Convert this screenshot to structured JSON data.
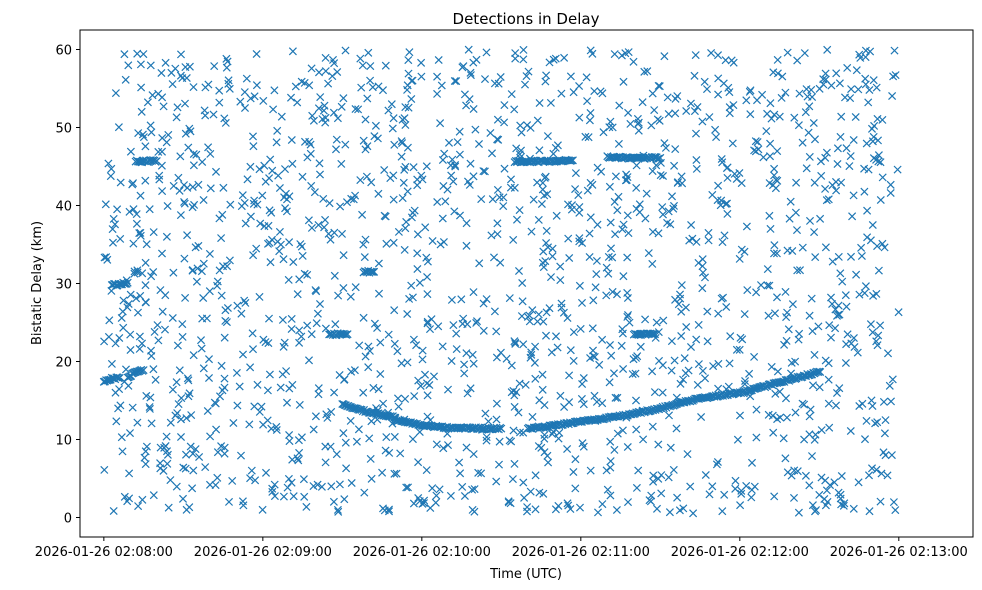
{
  "chart_data": {
    "type": "scatter",
    "title": "Detections in Delay",
    "xlabel": "Time (UTC)",
    "ylabel": "Bistatic Delay (km)",
    "x_ticks": [
      "2026-01-26 02:08:00",
      "2026-01-26 02:09:00",
      "2026-01-26 02:10:00",
      "2026-01-26 02:11:00",
      "2026-01-26 02:12:00",
      "2026-01-26 02:13:00"
    ],
    "y_ticks": [
      "0",
      "10",
      "20",
      "30",
      "40",
      "50",
      "60"
    ],
    "xlim": [
      "2026-01-26 02:07:51",
      "2026-01-26 02:13:28"
    ],
    "ylim": [
      -2.5,
      62.5
    ],
    "marker": "x",
    "color": "#1f77b4",
    "grid": false,
    "noise_detections": {
      "time_start": "2026-01-26 02:08:00",
      "time_end": "2026-01-26 02:13:00",
      "delay_min": 0.5,
      "delay_max": 60,
      "count": 1700
    },
    "tracks": [
      {
        "points": [
          [
            "2026-01-26 02:08:00",
            17.5
          ],
          [
            "2026-01-26 02:08:03",
            17.8
          ],
          [
            "2026-01-26 02:08:06",
            17.9
          ]
        ]
      },
      {
        "points": [
          [
            "2026-01-26 02:08:03",
            29.8
          ],
          [
            "2026-01-26 02:08:06",
            29.9
          ],
          [
            "2026-01-26 02:08:09",
            30.1
          ]
        ]
      },
      {
        "points": [
          [
            "2026-01-26 02:08:09",
            18.0
          ],
          [
            "2026-01-26 02:08:12",
            18.6
          ],
          [
            "2026-01-26 02:08:15",
            18.9
          ]
        ]
      },
      {
        "points": [
          [
            "2026-01-26 02:08:12",
            45.7
          ],
          [
            "2026-01-26 02:08:15",
            45.7
          ],
          [
            "2026-01-26 02:08:20",
            45.7
          ]
        ]
      },
      {
        "points": [
          [
            "2026-01-26 02:09:25",
            23.5
          ],
          [
            "2026-01-26 02:09:32",
            23.5
          ]
        ]
      },
      {
        "points": [
          [
            "2026-01-26 02:09:30",
            14.5
          ],
          [
            "2026-01-26 02:09:40",
            13.5
          ],
          [
            "2026-01-26 02:09:50",
            12.8
          ]
        ]
      },
      {
        "points": [
          [
            "2026-01-26 02:09:38",
            31.5
          ],
          [
            "2026-01-26 02:09:42",
            31.5
          ]
        ]
      },
      {
        "points": [
          [
            "2026-01-26 02:09:50",
            12.5
          ],
          [
            "2026-01-26 02:10:00",
            11.8
          ],
          [
            "2026-01-26 02:10:10",
            11.5
          ],
          [
            "2026-01-26 02:10:30",
            11.4
          ]
        ]
      },
      {
        "points": [
          [
            "2026-01-26 02:10:35",
            45.6
          ],
          [
            "2026-01-26 02:10:50",
            45.7
          ],
          [
            "2026-01-26 02:10:57",
            45.8
          ]
        ]
      },
      {
        "points": [
          [
            "2026-01-26 02:10:40",
            11.4
          ],
          [
            "2026-01-26 02:10:50",
            11.8
          ],
          [
            "2026-01-26 02:11:00",
            12.3
          ],
          [
            "2026-01-26 02:11:15",
            13.0
          ],
          [
            "2026-01-26 02:11:30",
            14.0
          ],
          [
            "2026-01-26 02:11:45",
            15.3
          ],
          [
            "2026-01-26 02:12:00",
            16.0
          ],
          [
            "2026-01-26 02:12:15",
            17.3
          ],
          [
            "2026-01-26 02:12:30",
            18.7
          ]
        ]
      },
      {
        "points": [
          [
            "2026-01-26 02:11:10",
            46.2
          ],
          [
            "2026-01-26 02:11:20",
            46.1
          ],
          [
            "2026-01-26 02:11:30",
            46.1
          ]
        ]
      },
      {
        "points": [
          [
            "2026-01-26 02:11:20",
            23.5
          ],
          [
            "2026-01-26 02:11:28",
            23.5
          ]
        ]
      }
    ]
  }
}
